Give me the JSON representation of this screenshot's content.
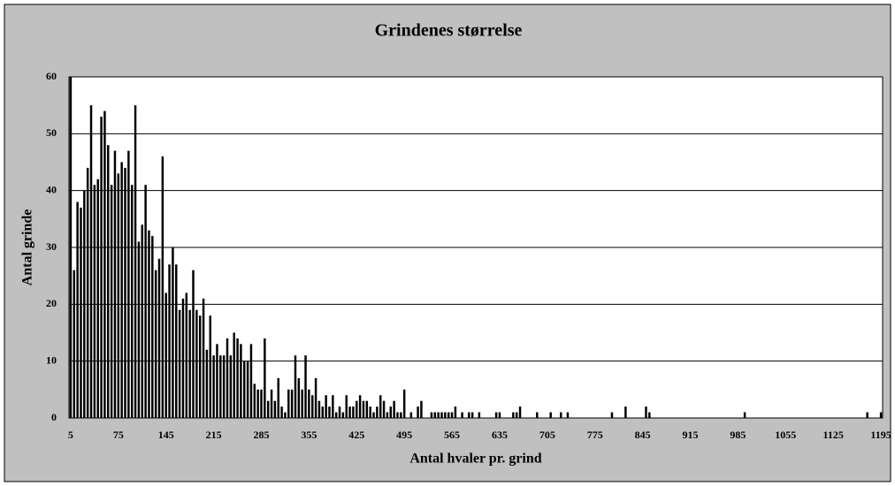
{
  "chart_data": {
    "type": "bar",
    "title": "Grindenes størrelse",
    "xlabel": "Antal hvaler pr. grind",
    "ylabel": "Antal grinde",
    "categories": [
      "5",
      null,
      null,
      null,
      null,
      null,
      null,
      null,
      null,
      null,
      null,
      null,
      null,
      null,
      "75",
      null,
      null,
      null,
      null,
      null,
      null,
      null,
      null,
      null,
      null,
      null,
      null,
      null,
      "145",
      null,
      null,
      null,
      null,
      null,
      null,
      null,
      null,
      null,
      null,
      null,
      null,
      null,
      "215",
      null,
      null,
      null,
      null,
      null,
      null,
      null,
      null,
      null,
      null,
      null,
      null,
      null,
      "285",
      null,
      null,
      null,
      null,
      null,
      null,
      null,
      null,
      null,
      null,
      null,
      null,
      null,
      "355",
      null,
      null,
      null,
      null,
      null,
      null,
      null,
      null,
      null,
      null,
      null,
      null,
      null,
      "425",
      null,
      null,
      null,
      null,
      null,
      null,
      null,
      null,
      null,
      null,
      null,
      null,
      null,
      "495",
      null,
      null,
      null,
      null,
      null,
      null,
      null,
      null,
      null,
      null,
      null,
      null,
      null,
      "565",
      null,
      null,
      null,
      null,
      null,
      null,
      null,
      null,
      null,
      null,
      null,
      null,
      null,
      "635",
      null,
      null,
      null,
      null,
      null,
      null,
      null,
      null,
      null,
      null,
      null,
      null,
      null,
      "705",
      null,
      null,
      null,
      null,
      null,
      null,
      null,
      null,
      null,
      null,
      null,
      null,
      null,
      "775",
      null,
      null,
      null,
      null,
      null,
      null,
      null,
      null,
      null,
      null,
      null,
      null,
      null,
      "845",
      null,
      null,
      null,
      null,
      null,
      null,
      null,
      null,
      null,
      null,
      null,
      null,
      null,
      "915",
      null,
      null,
      null,
      null,
      null,
      null,
      null,
      null,
      null,
      null,
      null,
      null,
      null,
      "985",
      null,
      null,
      null,
      null,
      null,
      null,
      null,
      null,
      null,
      null,
      null,
      null,
      null,
      "1055",
      null,
      null,
      null,
      null,
      null,
      null,
      null,
      null,
      null,
      null,
      null,
      null,
      null,
      "1125",
      null,
      null,
      null,
      null,
      null,
      null,
      null,
      null,
      null,
      null,
      null,
      null,
      null,
      "1195"
    ],
    "values": [
      60,
      26,
      38,
      37,
      40,
      44,
      55,
      41,
      42,
      53,
      54,
      48,
      41,
      47,
      43,
      45,
      44,
      47,
      41,
      55,
      31,
      34,
      41,
      33,
      32,
      26,
      28,
      46,
      22,
      27,
      30,
      27,
      19,
      21,
      22,
      19,
      26,
      19,
      18,
      21,
      12,
      18,
      11,
      13,
      11,
      11,
      14,
      11,
      15,
      14,
      13,
      10,
      10,
      13,
      6,
      5,
      5,
      14,
      3,
      5,
      3,
      7,
      2,
      1,
      5,
      5,
      11,
      7,
      5,
      11,
      5,
      4,
      7,
      3,
      2,
      4,
      2,
      4,
      1,
      2,
      1,
      4,
      2,
      2,
      3,
      4,
      3,
      3,
      2,
      1,
      2,
      4,
      3,
      1,
      2,
      3,
      1,
      1,
      5,
      0,
      1,
      0,
      2,
      3,
      0,
      0,
      1,
      1,
      1,
      1,
      1,
      1,
      1,
      2,
      0,
      1,
      0,
      1,
      1,
      0,
      1,
      0,
      0,
      0,
      0,
      1,
      1,
      0,
      0,
      0,
      1,
      1,
      2,
      0,
      0,
      0,
      0,
      1,
      0,
      0,
      0,
      1,
      0,
      0,
      1,
      0,
      1,
      0,
      0,
      0,
      0,
      0,
      0,
      0,
      0,
      0,
      0,
      0,
      0,
      1,
      0,
      0,
      0,
      2,
      0,
      0,
      0,
      0,
      0,
      2,
      1,
      0,
      0,
      0,
      0,
      0,
      0,
      0,
      0,
      0,
      0,
      0,
      0,
      0,
      0,
      0,
      0,
      0,
      0,
      0,
      0,
      0,
      0,
      0,
      0,
      0,
      0,
      0,
      1,
      0,
      0,
      0,
      0,
      0,
      0,
      0,
      0,
      0,
      0,
      0,
      0,
      0,
      0,
      0,
      0,
      0,
      0,
      0,
      0,
      0,
      0,
      0,
      0,
      0,
      0,
      0,
      0,
      0,
      0,
      0,
      0,
      0,
      0,
      0,
      1,
      0,
      0,
      0,
      1
    ],
    "color": "#000000",
    "ylim": [
      0,
      60
    ],
    "yticks": [
      0,
      10,
      20,
      30,
      40,
      50,
      60
    ],
    "grid": true
  }
}
